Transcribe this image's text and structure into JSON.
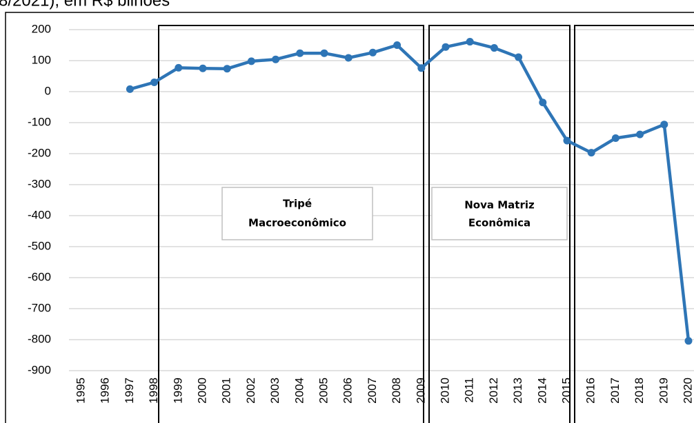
{
  "chart_data": {
    "type": "line",
    "title": "8/2021), em R$ bilhões",
    "categories": [
      "1995",
      "1996",
      "1997",
      "1998",
      "1999",
      "2000",
      "2001",
      "2002",
      "2003",
      "2004",
      "2005",
      "2006",
      "2007",
      "2008",
      "2009",
      "2010",
      "2011",
      "2012",
      "2013",
      "2014",
      "2015",
      "2016",
      "2017",
      "2018",
      "2019",
      "2020"
    ],
    "series": [
      {
        "color": "#2e75b6",
        "values": [
          null,
          null,
          8,
          30,
          77,
          75,
          74,
          98,
          104,
          124,
          124,
          109,
          126,
          150,
          76,
          144,
          161,
          141,
          111,
          -35,
          -158,
          -197,
          -150,
          -138,
          -106,
          -804
        ]
      }
    ],
    "ylim": [
      -900,
      200
    ],
    "yticks": [
      -900,
      -800,
      -700,
      -600,
      -500,
      -400,
      -300,
      -200,
      -100,
      0,
      100,
      200
    ],
    "grid": true,
    "annotations": [
      {
        "lines": [
          "Tripé",
          "Macroeconômico"
        ]
      },
      {
        "lines": [
          "Nova Matriz",
          "Econômica"
        ]
      }
    ]
  }
}
